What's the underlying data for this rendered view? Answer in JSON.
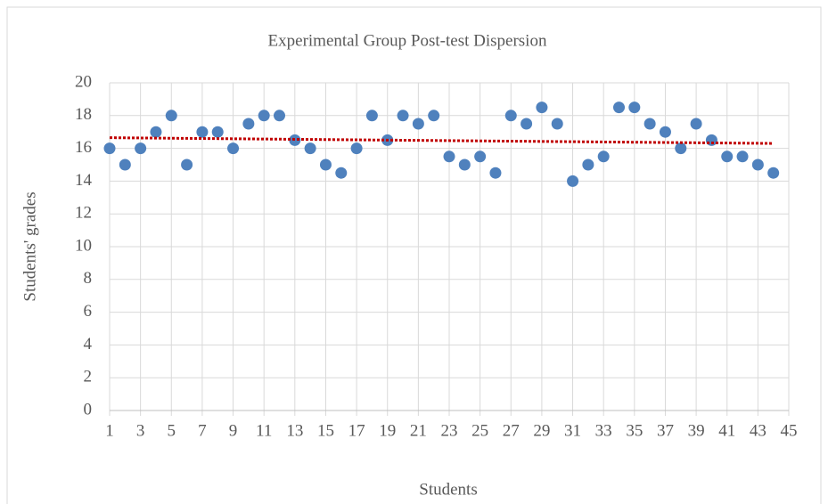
{
  "chart_data": {
    "type": "scatter",
    "title": "Experimental Group Post-test  Dispersion",
    "x_label": "Students",
    "y_label": "Students' grades",
    "x": [
      1,
      2,
      3,
      4,
      5,
      6,
      7,
      8,
      9,
      10,
      11,
      12,
      13,
      14,
      15,
      16,
      17,
      18,
      19,
      20,
      21,
      22,
      23,
      24,
      25,
      26,
      27,
      28,
      29,
      30,
      31,
      32,
      33,
      34,
      35,
      36,
      37,
      38,
      39,
      40,
      41,
      42,
      43,
      44
    ],
    "series": [
      {
        "color": "#4f81bd",
        "values": [
          16,
          15,
          16,
          17,
          18,
          15,
          17,
          17,
          16,
          17.5,
          18,
          18,
          16.5,
          16,
          15,
          14.5,
          16,
          18,
          16.5,
          18,
          17.5,
          18,
          15.5,
          15,
          15.5,
          14.5,
          18,
          17.5,
          18.5,
          17.5,
          14,
          15,
          15.5,
          18.5,
          18.5,
          17.5,
          17,
          16,
          17.5,
          16.5,
          15.5,
          15.5,
          15,
          14.5
        ]
      }
    ],
    "trendline": {
      "x": [
        1,
        44
      ],
      "values": [
        16.65,
        16.3
      ],
      "color": "#c00000"
    },
    "xlim": [
      1,
      45
    ],
    "xticks": [
      1,
      3,
      5,
      7,
      9,
      11,
      13,
      15,
      17,
      19,
      21,
      23,
      25,
      27,
      29,
      31,
      33,
      35,
      37,
      39,
      41,
      43,
      45
    ],
    "ylim": [
      0,
      20
    ],
    "yticks": [
      0,
      2,
      4,
      6,
      8,
      10,
      12,
      14,
      16,
      18,
      20
    ],
    "grid": true
  }
}
